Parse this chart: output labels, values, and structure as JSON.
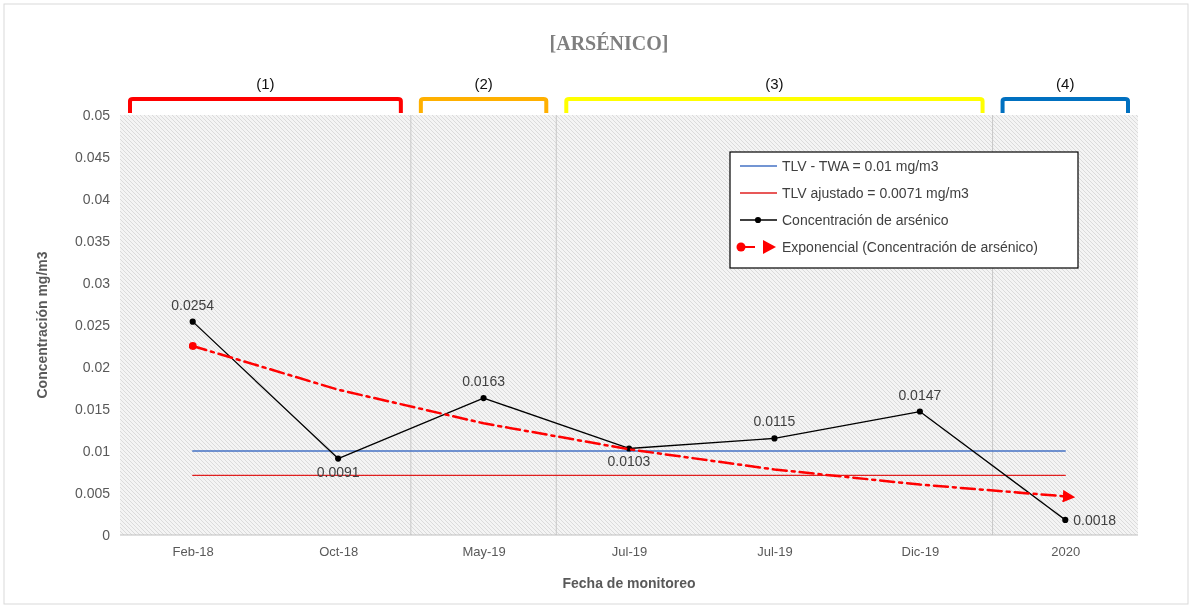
{
  "chart_data": {
    "type": "line",
    "title": "[ARSÉNICO]",
    "xlabel": "Fecha de monitoreo",
    "ylabel": "Concentración mg/m3",
    "categories": [
      "Feb-18",
      "Oct-18",
      "May-19",
      "Jul-19",
      "Jul-19",
      "Dic-19",
      "2020"
    ],
    "ylim": [
      0,
      0.05
    ],
    "yticks": [
      {
        "value": 0,
        "label": "0"
      },
      {
        "value": 0.005,
        "label": "0.005"
      },
      {
        "value": 0.01,
        "label": "0.01"
      },
      {
        "value": 0.015,
        "label": "0.015"
      },
      {
        "value": 0.02,
        "label": "0.02"
      },
      {
        "value": 0.025,
        "label": "0.025"
      },
      {
        "value": 0.03,
        "label": "0.03"
      },
      {
        "value": 0.035,
        "label": "0.035"
      },
      {
        "value": 0.04,
        "label": "0.04"
      },
      {
        "value": 0.045,
        "label": "0.045"
      },
      {
        "value": 0.05,
        "label": "0.05"
      }
    ],
    "series": [
      {
        "name": "TLV - TWA = 0.01 mg/m3",
        "color": "#4472c4",
        "values": [
          0.01,
          0.01,
          0.01,
          0.01,
          0.01,
          0.01,
          0.01
        ],
        "marker": "none"
      },
      {
        "name": "TLV ajustado = 0.0071 mg/m3",
        "color": "#e02020",
        "values": [
          0.0071,
          0.0071,
          0.0071,
          0.0071,
          0.0071,
          0.0071,
          0.0071
        ],
        "marker": "none"
      },
      {
        "name": "Concentración de arsénico",
        "color": "#000000",
        "values": [
          0.0254,
          0.0091,
          0.0163,
          0.0103,
          0.0115,
          0.0147,
          0.0018
        ],
        "marker": "circle",
        "value_labels": [
          "0.0254",
          "0.0091",
          "0.0163",
          "0.0103",
          "0.0115",
          "0.0147",
          "0.0018"
        ]
      },
      {
        "name": "Exponencial (Concentración de arsénico)",
        "color": "#ff0000",
        "values": [
          0.0225,
          0.0173,
          0.0133,
          0.0102,
          0.0078,
          0.006,
          0.0046
        ],
        "marker": "none",
        "line_style": "dashed"
      }
    ],
    "annotations": [
      "(1)",
      "(2)",
      "(3)",
      "(4)"
    ],
    "legend": "top right",
    "grid": false
  }
}
